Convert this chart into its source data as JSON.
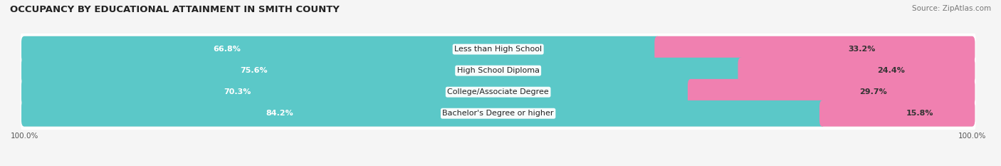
{
  "title": "OCCUPANCY BY EDUCATIONAL ATTAINMENT IN SMITH COUNTY",
  "source": "Source: ZipAtlas.com",
  "categories": [
    "Less than High School",
    "High School Diploma",
    "College/Associate Degree",
    "Bachelor's Degree or higher"
  ],
  "owner_values": [
    66.8,
    75.6,
    70.3,
    84.2
  ],
  "renter_values": [
    33.2,
    24.4,
    29.7,
    15.8
  ],
  "owner_color": "#5BC8C8",
  "renter_color": "#F080B0",
  "bar_height": 0.62,
  "figure_bg": "#f5f5f5",
  "row_bg": "#ffffff",
  "pill_bg": "#e0e0e0",
  "title_fontsize": 9.5,
  "label_fontsize": 8.0,
  "pct_fontsize": 8.0,
  "tick_fontsize": 7.5,
  "source_fontsize": 7.5,
  "legend_fontsize": 8.0
}
